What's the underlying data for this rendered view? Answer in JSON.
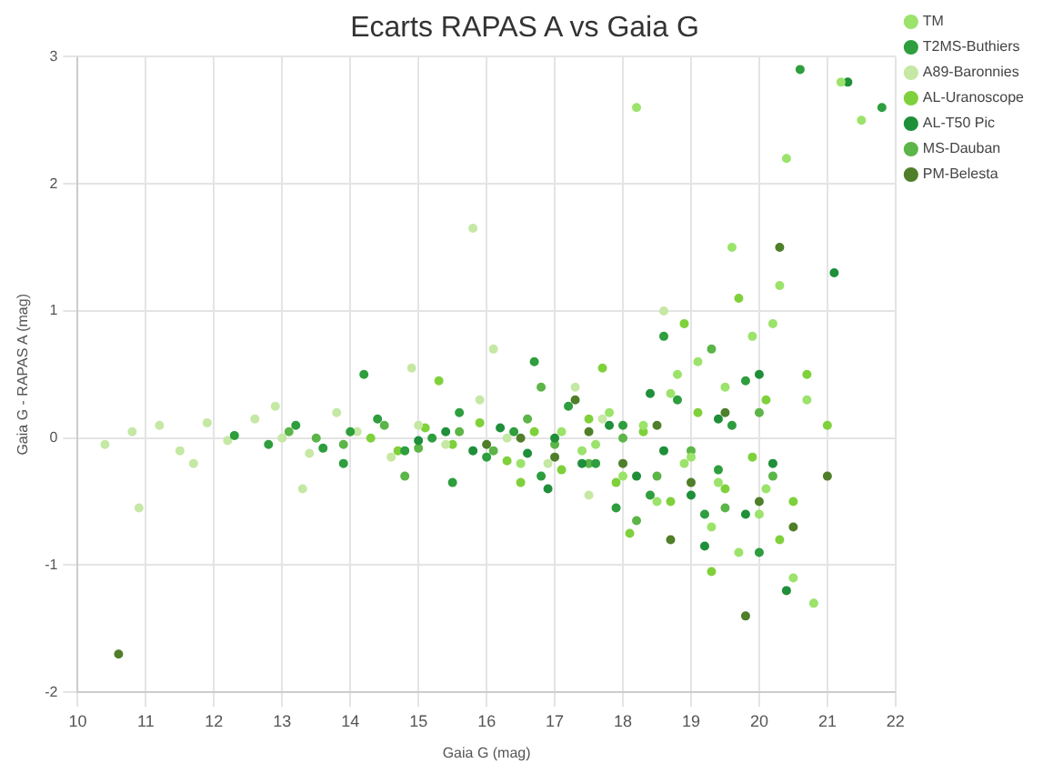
{
  "chart_data": {
    "type": "scatter",
    "title": "Ecarts RAPAS A vs Gaia G",
    "xlabel": "Gaia G (mag)",
    "ylabel": "Gaia G - RAPAS A (mag)",
    "xlim": [
      10,
      22
    ],
    "xticks": [
      10,
      11,
      12,
      13,
      14,
      15,
      16,
      17,
      18,
      19,
      20,
      21,
      22
    ],
    "ylim": [
      -2,
      3
    ],
    "yticks": [
      -2,
      -1,
      0,
      1,
      2,
      3
    ],
    "grid": true,
    "legend": "top right",
    "marker": "circle",
    "series": [
      {
        "name": "TM",
        "color": "#9be36b",
        "x": [
          17.1,
          17.4,
          17.8,
          18.0,
          18.3,
          18.5,
          18.7,
          18.9,
          19.1,
          19.3,
          19.5,
          19.7,
          19.9,
          20.1,
          20.3,
          20.5,
          20.7,
          18.2,
          19.0,
          19.6,
          20.0,
          20.4,
          21.2,
          21.5,
          17.6,
          18.8,
          19.4,
          20.2,
          20.8,
          16.5
        ],
        "values": [
          0.05,
          -0.1,
          0.2,
          -0.3,
          0.1,
          -0.5,
          0.35,
          -0.2,
          0.6,
          -0.7,
          0.4,
          -0.9,
          0.8,
          -0.4,
          1.2,
          -1.1,
          0.3,
          2.6,
          -0.15,
          1.5,
          -0.6,
          2.2,
          2.8,
          2.5,
          -0.05,
          0.5,
          -0.35,
          0.9,
          -1.3,
          -0.2
        ]
      },
      {
        "name": "T2MS-Buthiers",
        "color": "#2e9e3e",
        "x": [
          12.3,
          12.8,
          13.2,
          13.6,
          14.0,
          14.4,
          14.8,
          15.2,
          15.6,
          16.0,
          16.4,
          16.8,
          17.2,
          17.6,
          18.0,
          18.4,
          18.8,
          19.2,
          19.6,
          20.0,
          14.2,
          15.5,
          16.7,
          17.9,
          18.6,
          19.4,
          19.8,
          20.6,
          21.8,
          13.9
        ],
        "values": [
          0.02,
          -0.05,
          0.1,
          -0.08,
          0.05,
          0.15,
          -0.1,
          0.0,
          0.2,
          -0.15,
          0.05,
          -0.3,
          0.25,
          -0.2,
          0.1,
          -0.45,
          0.3,
          -0.6,
          0.1,
          -0.9,
          0.5,
          -0.35,
          0.6,
          -0.55,
          0.8,
          -0.25,
          0.45,
          2.9,
          2.6,
          -0.2
        ]
      },
      {
        "name": "A89-Baronnies",
        "color": "#c5e8a4",
        "x": [
          10.4,
          10.8,
          11.2,
          11.5,
          11.9,
          12.2,
          12.6,
          13.0,
          13.4,
          13.8,
          14.1,
          14.6,
          15.0,
          15.4,
          15.9,
          16.3,
          16.9,
          17.3,
          17.7,
          11.7,
          12.9,
          14.9,
          16.1,
          17.5,
          10.9,
          13.3,
          15.8,
          18.6
        ],
        "values": [
          -0.05,
          0.05,
          0.1,
          -0.1,
          0.12,
          -0.02,
          0.15,
          0.0,
          -0.12,
          0.2,
          0.05,
          -0.15,
          0.1,
          -0.05,
          0.3,
          0.0,
          -0.2,
          0.4,
          0.15,
          -0.2,
          0.25,
          0.55,
          0.7,
          -0.45,
          -0.55,
          -0.4,
          1.65,
          1.0
        ]
      },
      {
        "name": "AL-Uranoscope",
        "color": "#7fd13b",
        "x": [
          14.3,
          14.7,
          15.1,
          15.5,
          15.9,
          16.3,
          16.7,
          17.1,
          17.5,
          17.9,
          18.3,
          18.7,
          19.1,
          19.5,
          19.9,
          20.3,
          20.7,
          15.3,
          16.5,
          17.7,
          18.9,
          19.3,
          20.1,
          20.5,
          21.0,
          19.7,
          18.1
        ],
        "values": [
          0.0,
          -0.1,
          0.08,
          -0.05,
          0.12,
          -0.18,
          0.05,
          -0.25,
          0.15,
          -0.35,
          0.05,
          -0.5,
          0.2,
          -0.4,
          -0.15,
          -0.8,
          0.5,
          0.45,
          -0.35,
          0.55,
          0.9,
          -1.05,
          0.3,
          -0.5,
          0.1,
          1.1,
          -0.75
        ]
      },
      {
        "name": "AL-T50 Pic",
        "color": "#1f8f3a",
        "x": [
          15.0,
          15.4,
          15.8,
          16.2,
          16.6,
          17.0,
          17.4,
          17.8,
          18.2,
          18.6,
          19.0,
          19.4,
          19.8,
          20.2,
          16.9,
          18.4,
          19.2,
          20.0,
          20.4,
          21.3,
          21.1
        ],
        "values": [
          -0.02,
          0.05,
          -0.1,
          0.08,
          -0.12,
          0.0,
          -0.2,
          0.1,
          -0.3,
          -0.1,
          -0.45,
          0.15,
          -0.6,
          -0.2,
          -0.4,
          0.35,
          -0.85,
          0.5,
          -1.2,
          2.8,
          1.3
        ]
      },
      {
        "name": "MS-Dauban",
        "color": "#5cb548",
        "x": [
          13.1,
          13.5,
          13.9,
          14.5,
          15.0,
          15.6,
          16.1,
          16.6,
          17.0,
          17.5,
          18.0,
          18.5,
          19.0,
          19.5,
          20.0,
          14.8,
          16.8,
          18.2,
          19.3,
          20.2
        ],
        "values": [
          0.05,
          0.0,
          -0.05,
          0.1,
          -0.08,
          0.05,
          -0.1,
          0.15,
          -0.05,
          -0.2,
          0.0,
          -0.3,
          -0.1,
          -0.55,
          0.2,
          -0.3,
          0.4,
          -0.65,
          0.7,
          -0.3
        ]
      },
      {
        "name": "PM-Belesta",
        "color": "#4f7f2a",
        "x": [
          16.0,
          16.5,
          17.0,
          17.5,
          18.0,
          18.5,
          19.0,
          19.5,
          20.0,
          20.5,
          21.0,
          17.3,
          18.7,
          19.8,
          20.3,
          10.6
        ],
        "values": [
          -0.05,
          0.0,
          -0.15,
          0.05,
          -0.2,
          0.1,
          -0.35,
          0.2,
          -0.5,
          -0.7,
          -0.3,
          0.3,
          -0.8,
          -1.4,
          1.5,
          -1.7
        ]
      }
    ]
  }
}
